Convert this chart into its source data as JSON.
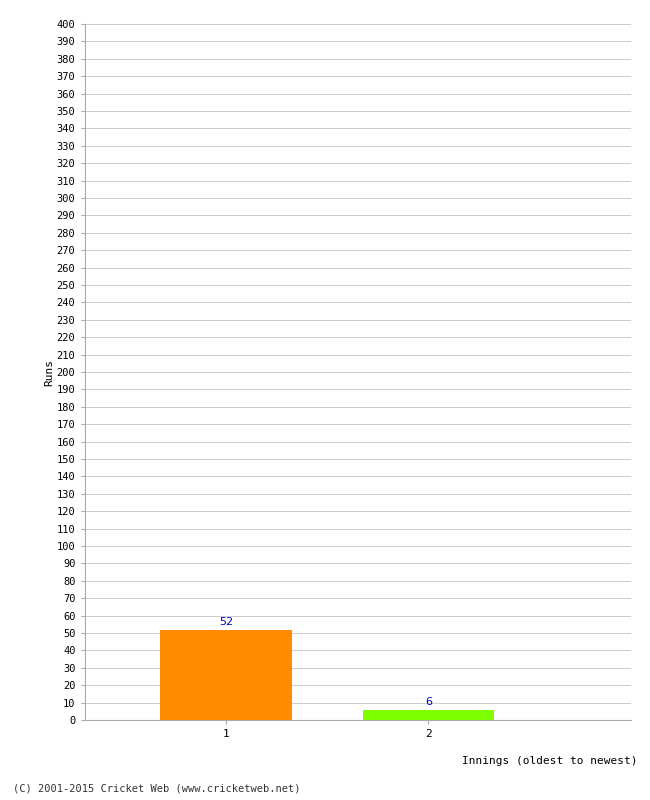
{
  "categories": [
    "1",
    "2"
  ],
  "values": [
    52,
    6
  ],
  "bar_colors": [
    "#ff8c00",
    "#7fff00"
  ],
  "ylabel": "Runs",
  "xlabel": "Innings (oldest to newest)",
  "ylim": [
    0,
    400
  ],
  "value_label_color": "#0000cc",
  "footer": "(C) 2001-2015 Cricket Web (www.cricketweb.net)",
  "background_color": "#ffffff",
  "grid_color": "#cccccc",
  "bar_width": 0.65,
  "x_positions": [
    1,
    2
  ],
  "xlim": [
    0.3,
    3.0
  ]
}
